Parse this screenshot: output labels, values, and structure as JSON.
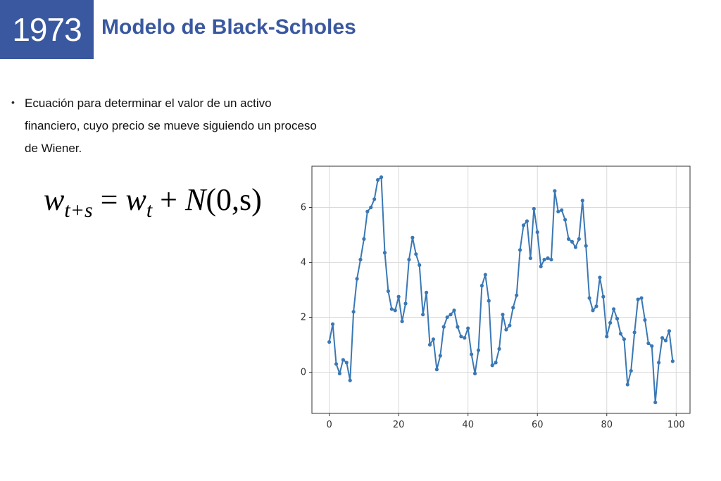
{
  "header": {
    "year": "1973",
    "title": "Modelo de Black-Scholes"
  },
  "bullet": {
    "text": "Ecuación para determinar el valor de un activo financiero, cuyo precio se mueve siguiendo un proceso de Wiener."
  },
  "formula": {
    "lhs_var": "w",
    "lhs_sub": "t+s",
    "equals": " = ",
    "rhs_var": "w",
    "rhs_sub": "t",
    "plus": " + ",
    "normal": "N",
    "args": "(0,s)"
  },
  "colors": {
    "header_bg": "#3a58a0",
    "title": "#3a58a0",
    "line": "#3a78b4"
  },
  "chart_data": {
    "type": "line",
    "xlim": [
      -5,
      104
    ],
    "ylim": [
      -1.5,
      7.5
    ],
    "xticks": [
      0,
      20,
      40,
      60,
      80,
      100
    ],
    "yticks": [
      0,
      2,
      4,
      6
    ],
    "grid": true,
    "markers": true,
    "x": [
      0,
      1,
      2,
      3,
      4,
      5,
      6,
      7,
      8,
      9,
      10,
      11,
      12,
      13,
      14,
      15,
      16,
      17,
      18,
      19,
      20,
      21,
      22,
      23,
      24,
      25,
      26,
      27,
      28,
      29,
      30,
      31,
      32,
      33,
      34,
      35,
      36,
      37,
      38,
      39,
      40,
      41,
      42,
      43,
      44,
      45,
      46,
      47,
      48,
      49,
      50,
      51,
      52,
      53,
      54,
      55,
      56,
      57,
      58,
      59,
      60,
      61,
      62,
      63,
      64,
      65,
      66,
      67,
      68,
      69,
      70,
      71,
      72,
      73,
      74,
      75,
      76,
      77,
      78,
      79,
      80,
      81,
      82,
      83,
      84,
      85,
      86,
      87,
      88,
      89,
      90,
      91,
      92,
      93,
      94,
      95,
      96,
      97,
      98,
      99
    ],
    "y": [
      1.1,
      1.75,
      0.3,
      -0.05,
      0.45,
      0.35,
      -0.3,
      2.2,
      3.4,
      4.1,
      4.85,
      5.85,
      6.0,
      6.3,
      7.0,
      7.1,
      4.35,
      2.95,
      2.3,
      2.25,
      2.75,
      1.85,
      2.5,
      4.1,
      4.9,
      4.3,
      3.9,
      2.1,
      2.9,
      1.0,
      1.2,
      0.1,
      0.6,
      1.65,
      2.0,
      2.1,
      2.25,
      1.65,
      1.3,
      1.25,
      1.6,
      0.65,
      -0.05,
      0.8,
      3.15,
      3.55,
      2.6,
      0.25,
      0.35,
      0.85,
      2.1,
      1.55,
      1.7,
      2.35,
      2.8,
      4.45,
      5.35,
      5.5,
      4.15,
      5.95,
      5.1,
      3.85,
      4.1,
      4.15,
      4.1,
      6.6,
      5.85,
      5.9,
      5.55,
      4.85,
      4.75,
      4.55,
      4.85,
      6.25,
      4.6,
      2.7,
      2.25,
      2.4,
      3.45,
      2.75,
      1.3,
      1.8,
      2.3,
      1.95,
      1.4,
      1.2,
      -0.45,
      0.05,
      1.45,
      2.65,
      2.7,
      1.9,
      1.05,
      0.95,
      -1.1,
      0.35,
      1.25,
      1.15,
      1.5,
      0.4
    ]
  }
}
